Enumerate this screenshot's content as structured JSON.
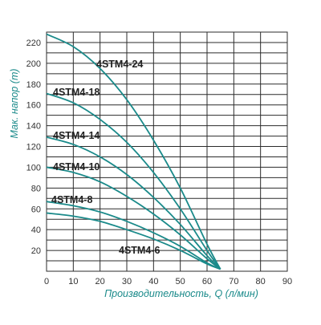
{
  "chart_data": {
    "type": "line",
    "title": "",
    "xlabel": "Производительность, Q (л/мин)",
    "ylabel": "Мак. напор (m)",
    "xlim": [
      0,
      90
    ],
    "ylim": [
      0,
      230
    ],
    "x_ticks": [
      "0",
      "10",
      "20",
      "30",
      "40",
      "50",
      "60",
      "70",
      "80",
      "90"
    ],
    "y_ticks": [
      "20",
      "40",
      "60",
      "80",
      "100",
      "120",
      "140",
      "160",
      "180",
      "200",
      "220"
    ],
    "grid": true,
    "legend": "labels-on-curves",
    "series_color": "#1a8a8a",
    "axis_title_color": "#1a8a8a",
    "series": [
      {
        "name": "4STM4-24",
        "x": [
          0,
          10,
          20,
          30,
          40,
          50,
          60,
          65
        ],
        "y": [
          228,
          216,
          195,
          165,
          126,
          80,
          26,
          2
        ]
      },
      {
        "name": "4STM4-18",
        "x": [
          0,
          10,
          20,
          30,
          40,
          50,
          60,
          65
        ],
        "y": [
          171,
          162,
          146,
          124,
          95,
          60,
          20,
          2
        ]
      },
      {
        "name": "4STM4-14",
        "x": [
          0,
          10,
          20,
          30,
          40,
          50,
          60,
          65
        ],
        "y": [
          129,
          122,
          110,
          93,
          71,
          45,
          15,
          2
        ]
      },
      {
        "name": "4STM4-10",
        "x": [
          0,
          10,
          20,
          30,
          40,
          50,
          60,
          65
        ],
        "y": [
          100,
          95,
          86,
          72,
          55,
          35,
          12,
          2
        ]
      },
      {
        "name": "4STM4-8",
        "x": [
          0,
          10,
          20,
          30,
          40,
          50,
          60,
          65
        ],
        "y": [
          67,
          63,
          57,
          48,
          37,
          24,
          8,
          2
        ]
      },
      {
        "name": "4STM4-6",
        "x": [
          0,
          10,
          20,
          30,
          40,
          50,
          60,
          65
        ],
        "y": [
          56,
          53,
          48,
          40,
          31,
          20,
          7,
          2
        ]
      }
    ]
  }
}
